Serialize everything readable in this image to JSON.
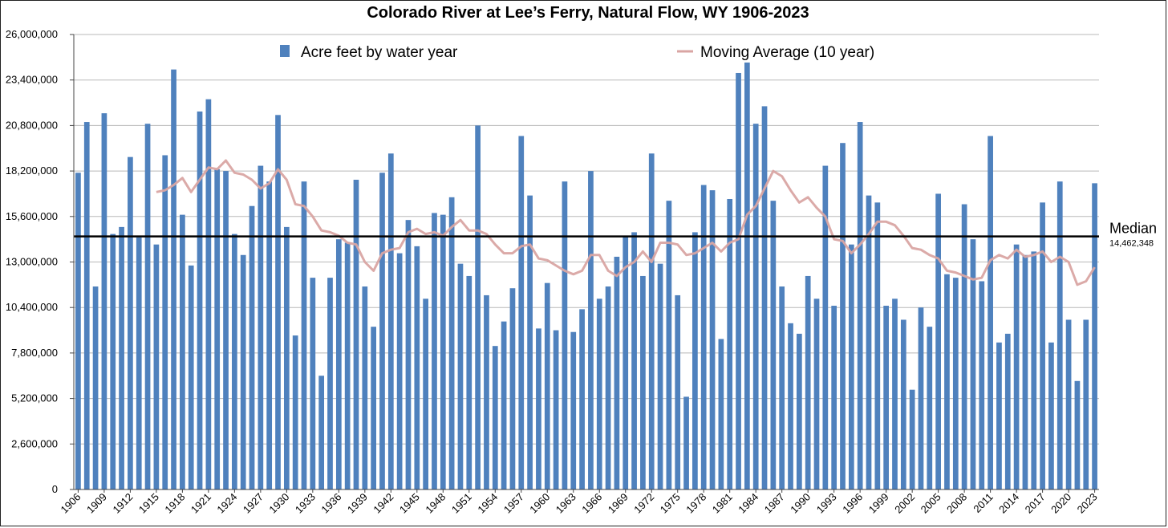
{
  "chart_data": {
    "type": "bar",
    "title": "Colorado River at Lee’s Ferry, Natural Flow, WY 1906-2023",
    "xlabel": "",
    "ylabel": "",
    "ylim": [
      0,
      26000000
    ],
    "y_ticks": [
      "0",
      "2,600,000",
      "5,200,000",
      "7,800,000",
      "10,400,000",
      "13,000,000",
      "15,600,000",
      "18,200,000",
      "20,800,000",
      "23,400,000",
      "26,000,000"
    ],
    "y_tick_values": [
      0,
      2600000,
      5200000,
      7800000,
      10400000,
      13000000,
      15600000,
      18200000,
      20800000,
      23400000,
      26000000
    ],
    "x_start": 1906,
    "x_end": 2023,
    "x_tick_labels": [
      "1906",
      "1909",
      "1912",
      "1915",
      "1918",
      "1921",
      "1924",
      "1927",
      "1930",
      "1933",
      "1936",
      "1939",
      "1942",
      "1945",
      "1948",
      "1951",
      "1954",
      "1957",
      "1960",
      "1963",
      "1966",
      "1969",
      "1972",
      "1975",
      "1978",
      "1981",
      "1984",
      "1987",
      "1990",
      "1993",
      "1996",
      "1999",
      "2002",
      "2005",
      "2008",
      "2011",
      "2014",
      "2017",
      "2020",
      "2023"
    ],
    "grid": true,
    "legend_position": "top",
    "series": [
      {
        "name": "Acre feet by water year",
        "type": "bar",
        "color": "#4F81BD",
        "years": [
          1906,
          1907,
          1908,
          1909,
          1910,
          1911,
          1912,
          1913,
          1914,
          1915,
          1916,
          1917,
          1918,
          1919,
          1920,
          1921,
          1922,
          1923,
          1924,
          1925,
          1926,
          1927,
          1928,
          1929,
          1930,
          1931,
          1932,
          1933,
          1934,
          1935,
          1936,
          1937,
          1938,
          1939,
          1940,
          1941,
          1942,
          1943,
          1944,
          1945,
          1946,
          1947,
          1948,
          1949,
          1950,
          1951,
          1952,
          1953,
          1954,
          1955,
          1956,
          1957,
          1958,
          1959,
          1960,
          1961,
          1962,
          1963,
          1964,
          1965,
          1966,
          1967,
          1968,
          1969,
          1970,
          1971,
          1972,
          1973,
          1974,
          1975,
          1976,
          1977,
          1978,
          1979,
          1980,
          1981,
          1982,
          1983,
          1984,
          1985,
          1986,
          1987,
          1988,
          1989,
          1990,
          1991,
          1992,
          1993,
          1994,
          1995,
          1996,
          1997,
          1998,
          1999,
          2000,
          2001,
          2002,
          2003,
          2004,
          2005,
          2006,
          2007,
          2008,
          2009,
          2010,
          2011,
          2012,
          2013,
          2014,
          2015,
          2016,
          2017,
          2018,
          2019,
          2020,
          2021,
          2022,
          2023
        ],
        "values": [
          18100000,
          21000000,
          11600000,
          21500000,
          14600000,
          15000000,
          19000000,
          14400000,
          20900000,
          14000000,
          19100000,
          24000000,
          15700000,
          12800000,
          21600000,
          22300000,
          18300000,
          18200000,
          14600000,
          13400000,
          16200000,
          18500000,
          17600000,
          21400000,
          15000000,
          8800000,
          17600000,
          12100000,
          6500000,
          12100000,
          14300000,
          14100000,
          17700000,
          11600000,
          9300000,
          18100000,
          19200000,
          13500000,
          15400000,
          13900000,
          10900000,
          15800000,
          15700000,
          16700000,
          12900000,
          12200000,
          20800000,
          11100000,
          8200000,
          9600000,
          11500000,
          20200000,
          16800000,
          9200000,
          11800000,
          9100000,
          17600000,
          9000000,
          10300000,
          18200000,
          10900000,
          11600000,
          13300000,
          14500000,
          14700000,
          12200000,
          19200000,
          12900000,
          16500000,
          11100000,
          5300000,
          14700000,
          17400000,
          17100000,
          8600000,
          16600000,
          23800000,
          24400000,
          20900000,
          21900000,
          16500000,
          11600000,
          9500000,
          8900000,
          12200000,
          10900000,
          18500000,
          10500000,
          19800000,
          14000000,
          21000000,
          16800000,
          16400000,
          10500000,
          10900000,
          9700000,
          5700000,
          10400000,
          9300000,
          16900000,
          12300000,
          12100000,
          16300000,
          14300000,
          11900000,
          20200000,
          8400000,
          8900000,
          14000000,
          13400000,
          13600000,
          16400000,
          8400000,
          17600000,
          9700000,
          6200000,
          9700000,
          17500000
        ]
      },
      {
        "name": "Moving Average (10 year)",
        "type": "line",
        "color": "#D9A5A3",
        "years": [
          1915,
          1916,
          1917,
          1918,
          1919,
          1920,
          1921,
          1922,
          1923,
          1924,
          1925,
          1926,
          1927,
          1928,
          1929,
          1930,
          1931,
          1932,
          1933,
          1934,
          1935,
          1936,
          1937,
          1938,
          1939,
          1940,
          1941,
          1942,
          1943,
          1944,
          1945,
          1946,
          1947,
          1948,
          1949,
          1950,
          1951,
          1952,
          1953,
          1954,
          1955,
          1956,
          1957,
          1958,
          1959,
          1960,
          1961,
          1962,
          1963,
          1964,
          1965,
          1966,
          1967,
          1968,
          1969,
          1970,
          1971,
          1972,
          1973,
          1974,
          1975,
          1976,
          1977,
          1978,
          1979,
          1980,
          1981,
          1982,
          1983,
          1984,
          1985,
          1986,
          1987,
          1988,
          1989,
          1990,
          1991,
          1992,
          1993,
          1994,
          1995,
          1996,
          1997,
          1998,
          1999,
          2000,
          2001,
          2002,
          2003,
          2004,
          2005,
          2006,
          2007,
          2008,
          2009,
          2010,
          2011,
          2012,
          2013,
          2014,
          2015,
          2016,
          2017,
          2018,
          2019,
          2020,
          2021,
          2022,
          2023
        ],
        "values": [
          17000000,
          17100000,
          17400000,
          17800000,
          17000000,
          17700000,
          18400000,
          18300000,
          18800000,
          18100000,
          18000000,
          17700000,
          17200000,
          17500000,
          18300000,
          17700000,
          16300000,
          16200000,
          15600000,
          14800000,
          14700000,
          14500000,
          14100000,
          14000000,
          13000000,
          12500000,
          13500000,
          13700000,
          13800000,
          14700000,
          14900000,
          14600000,
          14700000,
          14500000,
          15000000,
          15400000,
          14800000,
          14800000,
          14600000,
          14000000,
          13500000,
          13500000,
          13900000,
          14000000,
          13200000,
          13100000,
          12800000,
          12500000,
          12300000,
          12500000,
          13400000,
          13400000,
          12500000,
          12200000,
          12700000,
          13000000,
          13600000,
          13000000,
          14100000,
          14100000,
          14000000,
          13400000,
          13500000,
          13800000,
          14100000,
          13600000,
          14100000,
          14300000,
          15700000,
          16200000,
          17200000,
          18200000,
          17900000,
          17100000,
          16400000,
          16700000,
          16100000,
          15600000,
          14300000,
          14200000,
          13500000,
          14000000,
          14600000,
          15300000,
          15300000,
          15100000,
          14500000,
          13800000,
          13700000,
          13400000,
          13200000,
          12500000,
          12400000,
          12200000,
          12000000,
          12100000,
          13100000,
          13400000,
          13200000,
          13700000,
          13300000,
          13400000,
          13600000,
          13000000,
          13300000,
          13000000,
          11700000,
          11900000,
          12700000
        ]
      }
    ],
    "annotations": [
      {
        "type": "hline",
        "value": 14462348,
        "label": "Median",
        "value_label": "14,462,348",
        "color": "#000000"
      }
    ]
  }
}
